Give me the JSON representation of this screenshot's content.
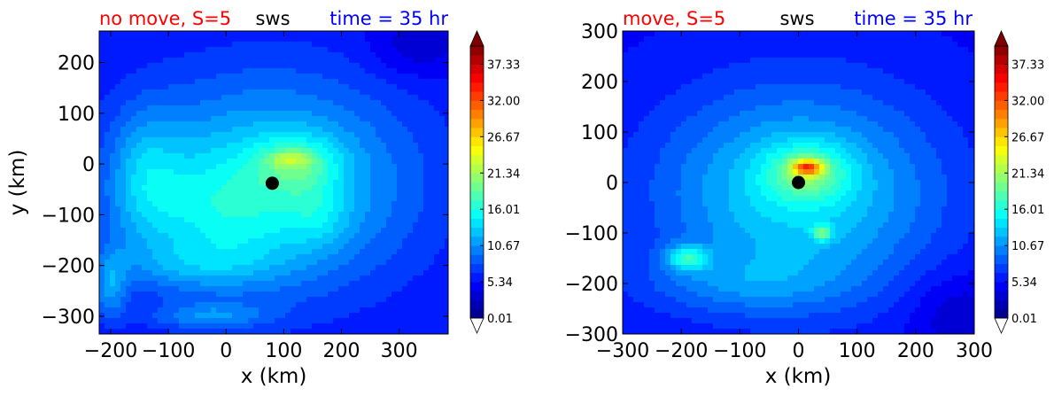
{
  "colors": {
    "title_left": "#ff0000",
    "title_center": "#000000",
    "title_right": "#0000ff"
  },
  "colorbar": {
    "ticks": [
      "0.01",
      "5.34",
      "10.67",
      "16.01",
      "21.34",
      "26.67",
      "32.00",
      "37.33"
    ],
    "range": [
      0.01,
      40.0
    ],
    "extend": "both",
    "colormap": "jet"
  },
  "chart_data": [
    {
      "type": "contourf",
      "title_left": "no move, S=5",
      "title_center": "sws",
      "title_right": "time = 35 hr",
      "xlabel": "x (km)",
      "ylabel": "y (km)",
      "xlim": [
        -220,
        385
      ],
      "ylim": [
        -335,
        262
      ],
      "xticks": [
        -200,
        -100,
        0,
        100,
        200,
        300
      ],
      "yticks": [
        200,
        100,
        0,
        -100,
        -200,
        -300
      ],
      "xtick_labels": [
        "−200",
        "−100",
        "0",
        "100",
        "200",
        "300"
      ],
      "ytick_labels": [
        "200",
        "100",
        "0",
        "−100",
        "−200",
        "−300"
      ],
      "center_marker": [
        80,
        -38
      ],
      "field": {
        "background": 5.0,
        "features": [
          {
            "x": 80,
            "y": -38,
            "sx": 260,
            "sy": 220,
            "a": 8.5
          },
          {
            "x": 125,
            "y": 0,
            "sx": 70,
            "sy": 55,
            "a": 5.5
          },
          {
            "x": 110,
            "y": 10,
            "sx": 35,
            "sy": 15,
            "a": 4.5
          },
          {
            "x": -20,
            "y": -100,
            "sx": 150,
            "sy": 130,
            "a": 4.0
          },
          {
            "x": -140,
            "y": -20,
            "sx": 60,
            "sy": 130,
            "a": 4.0
          },
          {
            "x": -200,
            "y": -240,
            "sx": 30,
            "sy": 70,
            "a": 5.0
          },
          {
            "x": -30,
            "y": -300,
            "sx": 100,
            "sy": 25,
            "a": 4.0
          },
          {
            "x": -60,
            "y": -200,
            "sx": 130,
            "sy": 45,
            "a": 2.5
          },
          {
            "x": 160,
            "y": -100,
            "sx": 50,
            "sy": 60,
            "a": 2.5
          },
          {
            "x": 330,
            "y": 230,
            "sx": 80,
            "sy": 60,
            "a": -2.5
          }
        ]
      }
    },
    {
      "type": "contourf",
      "title_left": "move, S=5",
      "title_center": "sws",
      "title_right": "time = 35 hr",
      "xlabel": "x (km)",
      "ylabel": "",
      "xlim": [
        -300,
        300
      ],
      "ylim": [
        -300,
        300
      ],
      "xticks": [
        -300,
        -200,
        -100,
        0,
        100,
        200,
        300
      ],
      "yticks": [
        300,
        200,
        100,
        0,
        -100,
        -200,
        -300
      ],
      "xtick_labels": [
        "−300",
        "−200",
        "−100",
        "0",
        "100",
        "200",
        "300"
      ],
      "ytick_labels": [
        "300",
        "200",
        "100",
        "0",
        "−100",
        "−200",
        "−300"
      ],
      "center_marker": [
        0,
        0
      ],
      "field": {
        "background": 5.0,
        "features": [
          {
            "x": 0,
            "y": -20,
            "sx": 240,
            "sy": 210,
            "a": 9.0
          },
          {
            "x": 15,
            "y": 20,
            "sx": 70,
            "sy": 55,
            "a": 7.0
          },
          {
            "x": 15,
            "y": 30,
            "sx": 25,
            "sy": 15,
            "a": 14.0
          },
          {
            "x": 40,
            "y": -100,
            "sx": 15,
            "sy": 15,
            "a": 8.0
          },
          {
            "x": -190,
            "y": -150,
            "sx": 35,
            "sy": 25,
            "a": 8.0
          },
          {
            "x": -100,
            "y": -200,
            "sx": 180,
            "sy": 60,
            "a": 3.0
          },
          {
            "x": 270,
            "y": -260,
            "sx": 80,
            "sy": 80,
            "a": -2.5
          }
        ]
      }
    }
  ]
}
